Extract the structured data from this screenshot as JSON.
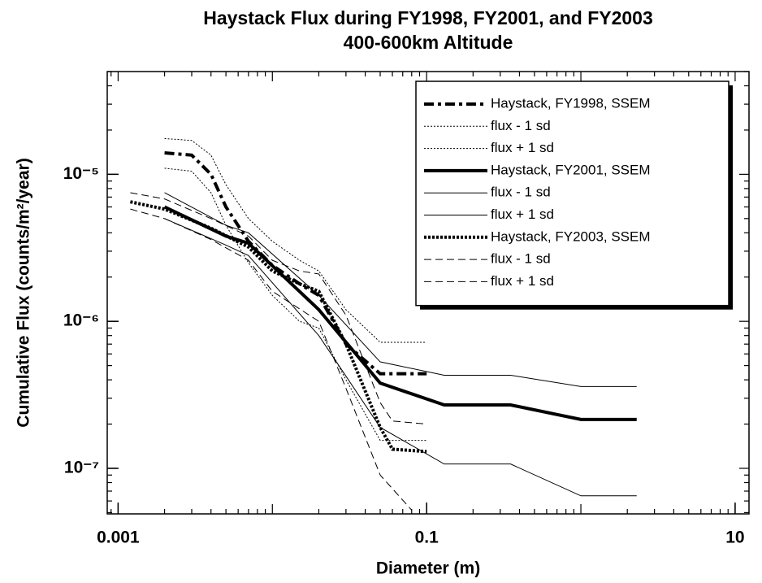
{
  "chart_data": {
    "type": "line",
    "title": "Haystack Flux during FY1998, FY2001, and FY2003",
    "subtitle": "400-600km Altitude",
    "xlabel": "Diameter (m)",
    "ylabel": "Cumulative Flux (counts/m²/year)",
    "xscale": "log",
    "yscale": "log",
    "xlim": [
      0.00085,
      12.3
    ],
    "ylim": [
      4.9e-08,
      5e-05
    ],
    "xticks": [
      0.001,
      0.1,
      10
    ],
    "yticks": [
      {
        "value": 1e-07,
        "label": "10⁻⁷"
      },
      {
        "value": 1e-06,
        "label": "10⁻⁶"
      },
      {
        "value": 1e-05,
        "label": "10⁻⁵"
      }
    ],
    "legend": "upper right",
    "series": [
      {
        "name": "Haystack, FY1998, SSEM",
        "color": "#000000",
        "dash": "dashdot",
        "width": "thick",
        "x": [
          0.002,
          0.003,
          0.004,
          0.005,
          0.007,
          0.01,
          0.015,
          0.02,
          0.03,
          0.05,
          0.1
        ],
        "values": [
          1.4e-05,
          1.35e-05,
          1e-05,
          6e-06,
          3.5e-06,
          2.4e-06,
          1.8e-06,
          1.5e-06,
          7e-07,
          4.4e-07,
          4.4e-07
        ]
      },
      {
        "name": "flux - 1 sd",
        "color": "#000000",
        "dash": "dotted",
        "width": "thin",
        "x": [
          0.002,
          0.003,
          0.004,
          0.005,
          0.007,
          0.01,
          0.015,
          0.02,
          0.03,
          0.05,
          0.1
        ],
        "values": [
          1.1e-05,
          1.05e-05,
          7.5e-06,
          4.5e-06,
          2.5e-06,
          1.5e-06,
          1e-06,
          9e-07,
          4e-07,
          1.55e-07,
          1.55e-07
        ]
      },
      {
        "name": "flux + 1 sd",
        "color": "#000000",
        "dash": "dotted",
        "width": "thin",
        "x": [
          0.002,
          0.003,
          0.004,
          0.005,
          0.007,
          0.01,
          0.015,
          0.02,
          0.03,
          0.05,
          0.1
        ],
        "values": [
          1.75e-05,
          1.7e-05,
          1.35e-05,
          8.5e-06,
          5e-06,
          3.5e-06,
          2.6e-06,
          2.2e-06,
          1.2e-06,
          7.2e-07,
          7.2e-07
        ]
      },
      {
        "name": "Haystack, FY2001, SSEM",
        "color": "#000000",
        "dash": "solid",
        "width": "thick",
        "x": [
          0.002,
          0.005,
          0.007,
          0.02,
          0.05,
          0.13,
          0.35,
          1.0,
          2.3
        ],
        "values": [
          6e-06,
          3.8e-06,
          3.4e-06,
          1.2e-06,
          3.8e-07,
          2.7e-07,
          2.7e-07,
          2.15e-07,
          2.15e-07
        ]
      },
      {
        "name": "flux - 1 sd",
        "color": "#000000",
        "dash": "solid",
        "width": "thin",
        "x": [
          0.002,
          0.005,
          0.007,
          0.02,
          0.05,
          0.13,
          0.35,
          1.0,
          2.3
        ],
        "values": [
          5e-06,
          3.3e-06,
          2.8e-06,
          8e-07,
          1.9e-07,
          1.07e-07,
          1.07e-07,
          6.5e-08,
          6.5e-08
        ]
      },
      {
        "name": "flux + 1 sd",
        "color": "#000000",
        "dash": "solid",
        "width": "thin",
        "x": [
          0.002,
          0.005,
          0.007,
          0.02,
          0.05,
          0.13,
          0.35,
          1.0,
          2.3
        ],
        "values": [
          7.5e-06,
          4.5e-06,
          4e-06,
          1.5e-06,
          5.3e-07,
          4.3e-07,
          4.3e-07,
          3.6e-07,
          3.6e-07
        ]
      },
      {
        "name": "Haystack, FY2003, SSEM",
        "color": "#000000",
        "dash": "dotted",
        "width": "thick",
        "x": [
          0.0012,
          0.002,
          0.004,
          0.007,
          0.01,
          0.015,
          0.02,
          0.03,
          0.05,
          0.06,
          0.1
        ],
        "values": [
          6.5e-06,
          5.8e-06,
          4.3e-06,
          3.2e-06,
          2.2e-06,
          1.8e-06,
          1.6e-06,
          7e-07,
          1.9e-07,
          1.35e-07,
          1.3e-07
        ]
      },
      {
        "name": "flux - 1 sd",
        "color": "#000000",
        "dash": "dashed",
        "width": "thin",
        "x": [
          0.0012,
          0.002,
          0.004,
          0.007,
          0.01,
          0.02,
          0.03,
          0.05,
          0.08
        ],
        "values": [
          5.8e-06,
          5e-06,
          3.6e-06,
          2.6e-06,
          1.6e-06,
          1e-06,
          3.5e-07,
          9e-08,
          5.2e-08
        ]
      },
      {
        "name": "flux + 1 sd",
        "color": "#000000",
        "dash": "dashed",
        "width": "thin",
        "x": [
          0.0012,
          0.002,
          0.004,
          0.007,
          0.01,
          0.015,
          0.02,
          0.03,
          0.05,
          0.06,
          0.1
        ],
        "values": [
          7.5e-06,
          6.8e-06,
          5e-06,
          3.8e-06,
          2.6e-06,
          2.2e-06,
          2.1e-06,
          1.1e-06,
          2.8e-07,
          2.1e-07,
          2e-07
        ]
      }
    ]
  }
}
